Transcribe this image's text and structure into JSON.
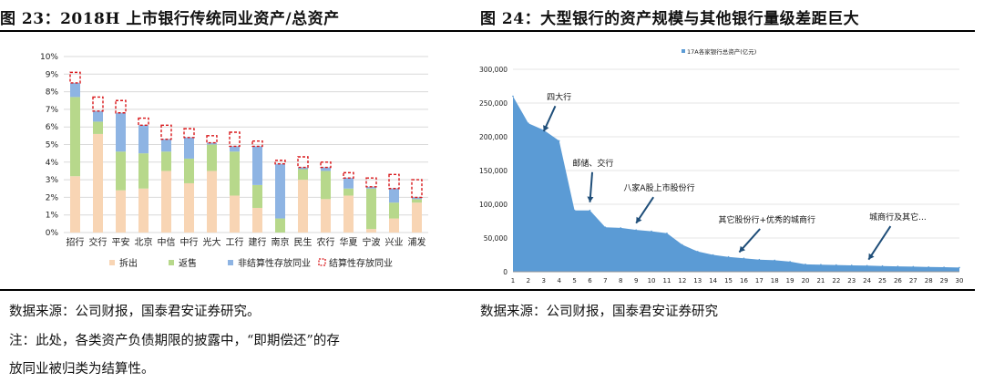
{
  "left": {
    "title": "图 23：2018H 上市银行传统同业资产/总资产",
    "source": "数据来源：公司财报，国泰君安证券研究。",
    "note_line1": "注：此处，各类资产负债期限的披露中，“即期偿还”的存",
    "note_line2": "放同业被归类为结算性。"
  },
  "right": {
    "title": "图 24：大型银行的资产规模与其他银行量级差距巨大",
    "source": "数据来源：公司财报，国泰君安证券研究"
  },
  "colors": {
    "chaichu": "#F8D5B4",
    "fanshou": "#B7D88B",
    "nonsettle": "#8EB4E3",
    "settle_border": "#D9191C",
    "area": "#5B9BD5",
    "grid": "#D9D9D9",
    "annot": "#1F4E79"
  },
  "chart_data": [
    {
      "type": "bar",
      "stacked": true,
      "categories": [
        "招行",
        "交行",
        "平安",
        "北京",
        "中信",
        "中行",
        "光大",
        "工行",
        "建行",
        "南京",
        "民生",
        "农行",
        "华夏",
        "宁波",
        "兴业",
        "浦发"
      ],
      "yticks": [
        "0%",
        "1%",
        "2%",
        "3%",
        "4%",
        "5%",
        "6%",
        "7%",
        "8%",
        "9%",
        "10%"
      ],
      "ylim": [
        0,
        10
      ],
      "grid": true,
      "legend_position": "bottom",
      "series": [
        {
          "name": "拆出",
          "values": [
            3.2,
            5.6,
            2.4,
            2.5,
            3.5,
            2.8,
            3.5,
            2.1,
            1.4,
            0.0,
            3.0,
            1.9,
            2.1,
            0.2,
            0.8,
            1.7
          ]
        },
        {
          "name": "返售",
          "values": [
            4.5,
            0.7,
            2.2,
            2.0,
            1.1,
            1.4,
            1.5,
            2.5,
            1.3,
            0.8,
            0.6,
            1.6,
            0.4,
            2.3,
            0.9,
            0.2
          ]
        },
        {
          "name": "非结算性存放同业",
          "values": [
            0.8,
            0.6,
            2.2,
            1.6,
            0.7,
            1.2,
            0.1,
            0.3,
            2.2,
            3.1,
            0.1,
            0.2,
            0.6,
            0.1,
            0.8,
            0.1
          ]
        },
        {
          "name": "结算性存放同业",
          "values": [
            0.6,
            0.8,
            0.7,
            0.4,
            0.8,
            0.5,
            0.4,
            0.8,
            0.3,
            0.2,
            0.6,
            0.3,
            0.3,
            0.5,
            0.8,
            1.0
          ]
        }
      ]
    },
    {
      "type": "area",
      "legend": "17A各家银行总资产(亿元)",
      "legend_position": "top",
      "x": [
        1,
        2,
        3,
        4,
        5,
        6,
        7,
        8,
        9,
        10,
        11,
        12,
        13,
        14,
        15,
        16,
        17,
        18,
        19,
        20,
        21,
        22,
        23,
        24,
        25,
        26,
        27,
        28,
        29,
        30
      ],
      "values": [
        260000,
        220000,
        210000,
        194000,
        91000,
        91000,
        66000,
        65000,
        62000,
        60000,
        57000,
        40000,
        30000,
        25000,
        22000,
        20000,
        18000,
        17000,
        15000,
        11000,
        10500,
        10000,
        9500,
        9000,
        8500,
        8000,
        7500,
        7000,
        6700,
        6200
      ],
      "ylim": [
        0,
        300000
      ],
      "yticks": [
        "0",
        "50,000",
        "100,000",
        "150,000",
        "200,000",
        "250,000",
        "300,000"
      ],
      "grid": true,
      "annotations": [
        {
          "text": "四大行",
          "x": 4.0,
          "y": 255000,
          "arrow_to": [
            3.0,
            208000
          ]
        },
        {
          "text": "邮储、交行",
          "x": 6.2,
          "y": 157000,
          "arrow_to": [
            6.0,
            103000
          ]
        },
        {
          "text": "八家A股上市股份行",
          "x": 10.5,
          "y": 120000,
          "arrow_to": [
            9.0,
            72000
          ]
        },
        {
          "text": "其它股份行+优秀的城商行",
          "x": 17.5,
          "y": 73000,
          "arrow_to": [
            15.7,
            29000
          ]
        },
        {
          "text": "城商行及其它...",
          "x": 26.0,
          "y": 77000,
          "arrow_to": [
            24.1,
            18000
          ]
        }
      ]
    }
  ]
}
